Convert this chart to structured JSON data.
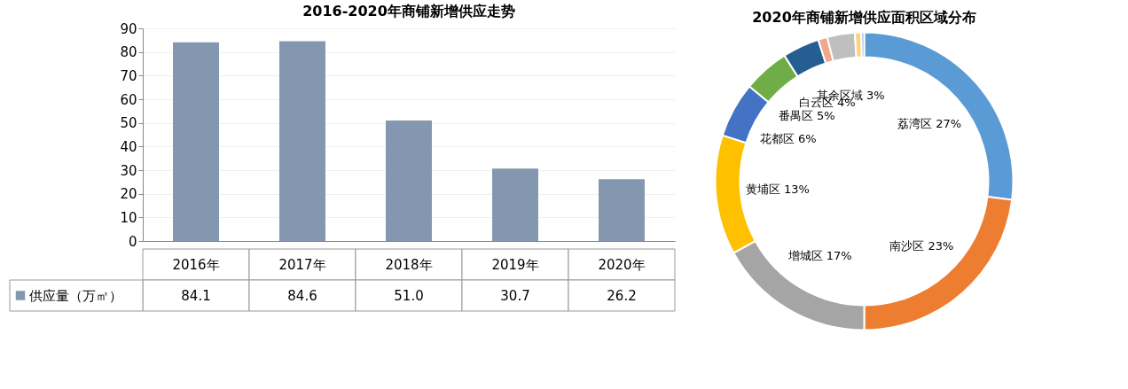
{
  "chart_data": [
    {
      "type": "bar",
      "title": "2016-2020年商铺新增供应走势",
      "categories": [
        "2016年",
        "2017年",
        "2018年",
        "2019年",
        "2020年"
      ],
      "series": [
        {
          "name": "供应量（万㎡）",
          "color": "#8497b0",
          "values": [
            84.1,
            84.6,
            51.0,
            30.7,
            26.2
          ],
          "value_labels": [
            "84.1",
            "84.6",
            "51.0",
            "30.7",
            "26.2"
          ]
        }
      ],
      "ylim": [
        0,
        90
      ],
      "yticks": [
        0,
        10,
        20,
        30,
        40,
        50,
        60,
        70,
        80,
        90
      ],
      "grid": "y",
      "legend": "bottom left"
    },
    {
      "type": "donut",
      "title": "2020年商铺新增供应面积区域分布",
      "categories": [
        "荔湾区",
        "南沙区",
        "增城区",
        "黄埔区",
        "花都区",
        "番禺区",
        "白云区",
        null,
        "其余区域",
        null,
        null
      ],
      "values": [
        27,
        23,
        17,
        13,
        6,
        5,
        4,
        1,
        3,
        0.7,
        0.3
      ],
      "value_labels": [
        "27%",
        "23%",
        "17%",
        "13%",
        "6%",
        "5%",
        "4%",
        null,
        "3%",
        null,
        null
      ],
      "colors": [
        "#5b9bd5",
        "#ed7d31",
        "#a5a5a5",
        "#ffc000",
        "#4472c4",
        "#70ad47",
        "#255e91",
        "#f1a78a",
        "#bfbfbf",
        "#ffd280",
        "#8faadc"
      ]
    }
  ]
}
